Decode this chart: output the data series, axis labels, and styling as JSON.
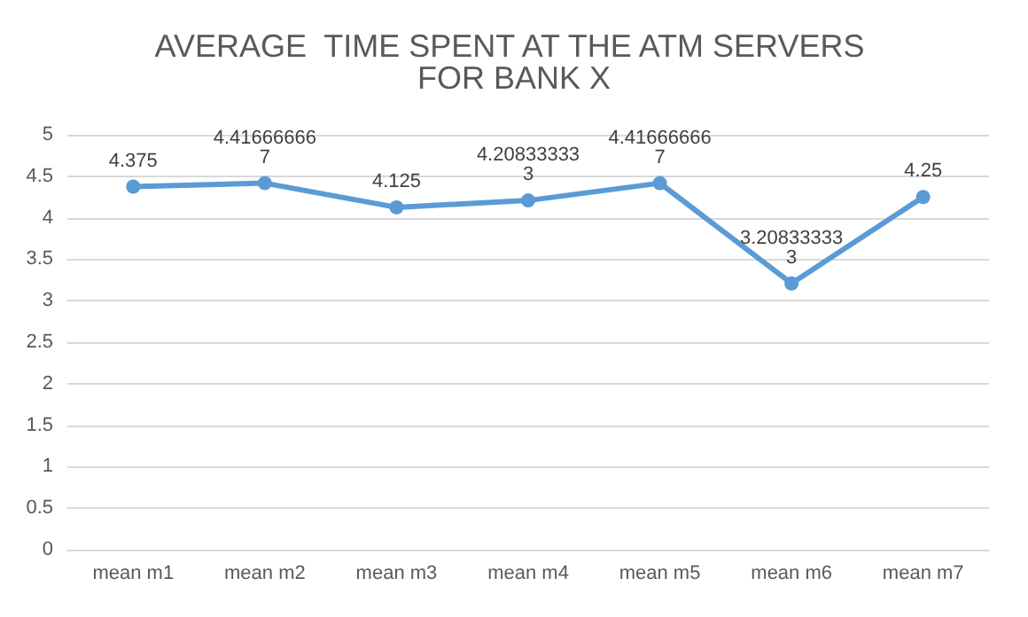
{
  "chart_data": {
    "type": "line",
    "title": "AVERAGE  TIME SPENT AT THE ATM SERVERS FOR BANK X",
    "categories": [
      "mean m1",
      "mean m2",
      "mean m3",
      "mean m4",
      "mean m5",
      "mean m6",
      "mean m7"
    ],
    "series": [
      {
        "color": "#5b9bd5",
        "values": [
          4.375,
          4.416666667,
          4.125,
          4.208333333,
          4.416666667,
          3.208333333,
          4.25
        ]
      }
    ],
    "ylim": [
      0,
      5
    ],
    "yticks": [
      0,
      0.5,
      1,
      1.5,
      2,
      2.5,
      3,
      3.5,
      4,
      4.5,
      5
    ],
    "grid": "y",
    "marker": "circle",
    "line_style": "solid",
    "data_labels": true
  }
}
